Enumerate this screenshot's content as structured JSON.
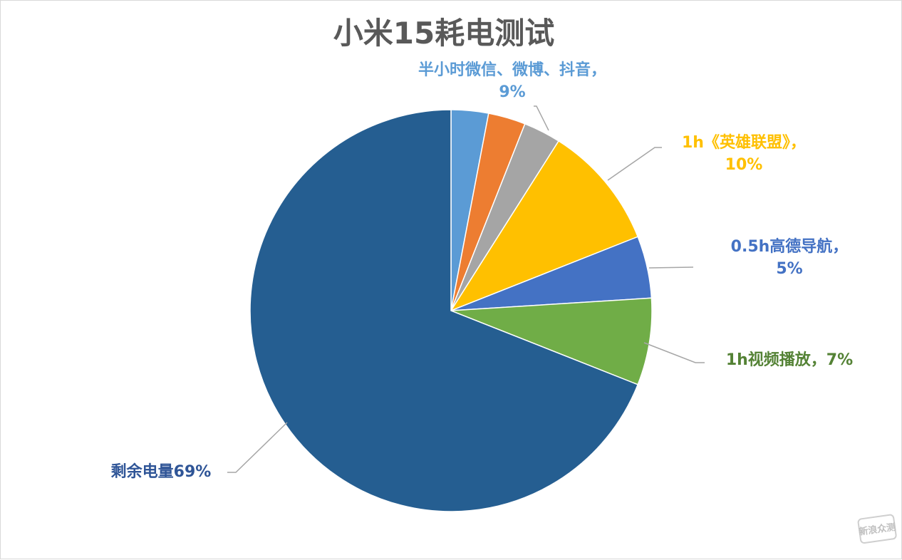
{
  "chart_data": {
    "type": "pie",
    "title": "小米15耗电测试",
    "slices": [
      {
        "label": "半小时微信、微博、抖音，",
        "value": 3,
        "color": "#5B9BD5"
      },
      {
        "label": "",
        "value": 3,
        "color": "#ED7D31"
      },
      {
        "label": "",
        "value": 3,
        "color": "#A5A5A5"
      },
      {
        "label": "1h《英雄联盟》，",
        "value": 10,
        "color": "#FFC000"
      },
      {
        "label": "0.5h高德导航，",
        "value": 5,
        "color": "#4472C4"
      },
      {
        "label": "1h视频播放，",
        "value": 7,
        "color": "#70AD47"
      },
      {
        "label": "剩余电量",
        "value": 69,
        "color": "#255E91"
      }
    ],
    "data_labels": [
      {
        "lines": [
          "半小时微信、微博、抖音，",
          "9%"
        ],
        "color": "#5B9BD5"
      },
      {
        "lines": [
          "1h《英雄联盟》，",
          "10%"
        ],
        "color": "#FFC000"
      },
      {
        "lines": [
          "0.5h高德导航，",
          "5%"
        ],
        "color": "#4472C4"
      },
      {
        "lines": [
          "1h视频播放，7%"
        ],
        "color": "#548235"
      },
      {
        "lines": [
          "剩余电量69%"
        ],
        "color": "#2F5597"
      }
    ],
    "legend": "none"
  },
  "watermark": {
    "text": "新浪众测"
  }
}
